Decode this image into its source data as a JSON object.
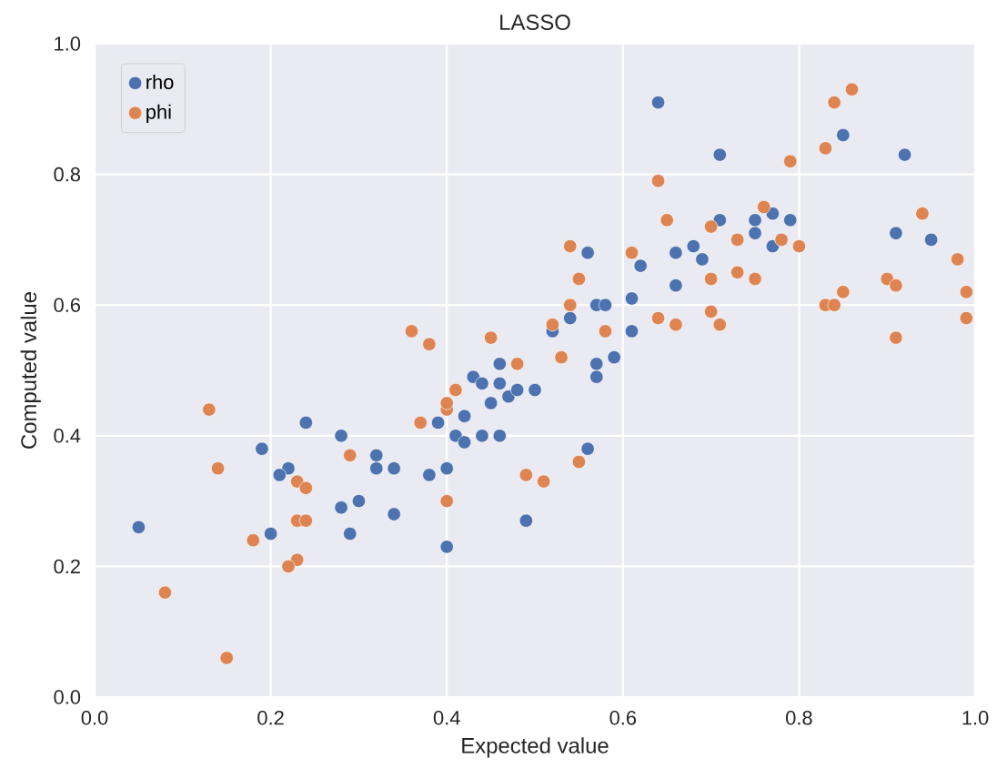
{
  "chart_data": {
    "type": "scatter",
    "title": "LASSO",
    "xlabel": "Expected value",
    "ylabel": "Computed value",
    "xlim": [
      0,
      1
    ],
    "ylim": [
      0,
      1
    ],
    "xticks": [
      {
        "value": 0,
        "label": "0.0"
      },
      {
        "value": 0.2,
        "label": "0.2"
      },
      {
        "value": 0.4,
        "label": "0.4"
      },
      {
        "value": 0.6,
        "label": "0.6"
      },
      {
        "value": 0.8,
        "label": "0.8"
      },
      {
        "value": 1,
        "label": "1.0"
      }
    ],
    "yticks": [
      {
        "value": 0,
        "label": "0.0"
      },
      {
        "value": 0.2,
        "label": "0.2"
      },
      {
        "value": 0.4,
        "label": "0.4"
      },
      {
        "value": 0.6,
        "label": "0.6"
      },
      {
        "value": 0.8,
        "label": "0.8"
      },
      {
        "value": 1,
        "label": "1.0"
      }
    ],
    "grid": true,
    "legend": "top left",
    "marker": "circle",
    "series": [
      {
        "name": "rho",
        "color": "#4c72b0",
        "x": [
          0.05,
          0.24,
          0.28,
          0.19,
          0.22,
          0.21,
          0.28,
          0.3,
          0.2,
          0.29,
          0.32,
          0.32,
          0.34,
          0.34,
          0.38,
          0.4,
          0.4,
          0.39,
          0.42,
          0.41,
          0.42,
          0.44,
          0.46,
          0.43,
          0.44,
          0.45,
          0.46,
          0.46,
          0.47,
          0.48,
          0.5,
          0.49,
          0.64,
          0.71,
          0.85,
          0.92,
          0.71,
          0.75,
          0.77,
          0.75,
          0.79,
          0.77,
          0.78,
          0.68,
          0.66,
          0.69,
          0.56,
          0.62,
          0.66,
          0.91,
          0.95,
          0.57,
          0.58,
          0.61,
          0.52,
          0.54,
          0.61,
          0.57,
          0.59,
          0.57,
          0.56
        ],
        "values": [
          0.26,
          0.42,
          0.4,
          0.38,
          0.35,
          0.34,
          0.29,
          0.3,
          0.25,
          0.25,
          0.37,
          0.35,
          0.35,
          0.28,
          0.34,
          0.35,
          0.23,
          0.42,
          0.43,
          0.4,
          0.39,
          0.4,
          0.4,
          0.49,
          0.48,
          0.45,
          0.48,
          0.51,
          0.46,
          0.47,
          0.47,
          0.27,
          0.91,
          0.83,
          0.86,
          0.83,
          0.73,
          0.73,
          0.74,
          0.71,
          0.73,
          0.69,
          0.7,
          0.69,
          0.68,
          0.67,
          0.68,
          0.66,
          0.63,
          0.71,
          0.7,
          0.6,
          0.6,
          0.61,
          0.56,
          0.58,
          0.56,
          0.51,
          0.52,
          0.49,
          0.38
        ]
      },
      {
        "name": "phi",
        "color": "#dd8452",
        "x": [
          0.13,
          0.14,
          0.23,
          0.24,
          0.23,
          0.24,
          0.18,
          0.23,
          0.22,
          0.08,
          0.15,
          0.29,
          0.4,
          0.37,
          0.4,
          0.4,
          0.41,
          0.48,
          0.49,
          0.36,
          0.38,
          0.45,
          0.84,
          0.86,
          0.83,
          0.79,
          0.64,
          0.65,
          0.76,
          0.7,
          0.73,
          0.78,
          0.8,
          0.54,
          0.61,
          0.55,
          0.7,
          0.73,
          0.75,
          0.94,
          0.98,
          0.85,
          0.83,
          0.84,
          0.9,
          0.91,
          0.99,
          0.99,
          0.91,
          0.54,
          0.52,
          0.64,
          0.66,
          0.7,
          0.71,
          0.58,
          0.53,
          0.55,
          0.51
        ],
        "values": [
          0.44,
          0.35,
          0.33,
          0.32,
          0.27,
          0.27,
          0.24,
          0.21,
          0.2,
          0.16,
          0.06,
          0.37,
          0.3,
          0.42,
          0.44,
          0.45,
          0.47,
          0.51,
          0.34,
          0.56,
          0.54,
          0.55,
          0.91,
          0.93,
          0.84,
          0.82,
          0.79,
          0.73,
          0.75,
          0.72,
          0.7,
          0.7,
          0.69,
          0.69,
          0.68,
          0.64,
          0.64,
          0.65,
          0.64,
          0.74,
          0.67,
          0.62,
          0.6,
          0.6,
          0.64,
          0.63,
          0.62,
          0.58,
          0.55,
          0.6,
          0.57,
          0.58,
          0.57,
          0.59,
          0.57,
          0.56,
          0.52,
          0.36,
          0.33
        ]
      }
    ]
  }
}
